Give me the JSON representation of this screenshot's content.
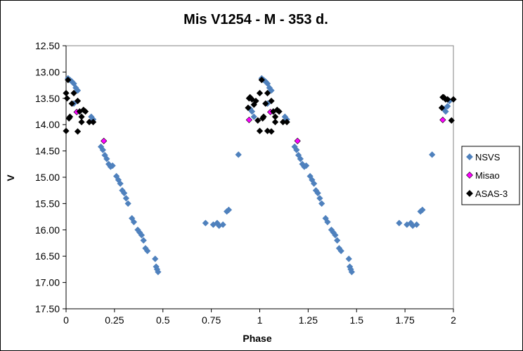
{
  "chart_data": {
    "type": "scatter",
    "title": "Mis V1254 - M - 353 d.",
    "xlabel": "Phase",
    "ylabel": "V",
    "xlim": [
      0,
      2
    ],
    "ylim": [
      12.5,
      17.5
    ],
    "y_inverted": true,
    "x_ticks": [
      "0",
      "0.25",
      "0.5",
      "0.75",
      "1",
      "1.25",
      "1.5",
      "1.75",
      "2"
    ],
    "y_ticks": [
      "12.50",
      "13.00",
      "13.50",
      "14.00",
      "14.50",
      "15.00",
      "15.50",
      "16.00",
      "16.50",
      "17.00",
      "17.50"
    ],
    "grid": false,
    "legend_position": "right",
    "series": [
      {
        "name": "NSVS",
        "color": "#4F81BD",
        "marker": "diamond",
        "points": [
          [
            0.01,
            13.12
          ],
          [
            0.02,
            13.15
          ],
          [
            0.03,
            13.18
          ],
          [
            0.04,
            13.22
          ],
          [
            0.05,
            13.3
          ],
          [
            0.06,
            13.35
          ],
          [
            0.04,
            13.6
          ],
          [
            0.07,
            13.75
          ],
          [
            0.13,
            13.85
          ],
          [
            0.14,
            13.9
          ],
          [
            0.18,
            14.42
          ],
          [
            0.19,
            14.48
          ],
          [
            0.2,
            14.58
          ],
          [
            0.21,
            14.65
          ],
          [
            0.22,
            14.75
          ],
          [
            0.23,
            14.8
          ],
          [
            0.24,
            14.78
          ],
          [
            0.26,
            14.98
          ],
          [
            0.27,
            15.05
          ],
          [
            0.28,
            15.12
          ],
          [
            0.29,
            15.25
          ],
          [
            0.3,
            15.3
          ],
          [
            0.31,
            15.4
          ],
          [
            0.32,
            15.5
          ],
          [
            0.34,
            15.78
          ],
          [
            0.35,
            15.85
          ],
          [
            0.37,
            16.0
          ],
          [
            0.38,
            16.05
          ],
          [
            0.39,
            16.1
          ],
          [
            0.4,
            16.2
          ],
          [
            0.41,
            16.35
          ],
          [
            0.42,
            16.4
          ],
          [
            0.46,
            16.55
          ],
          [
            0.465,
            16.7
          ],
          [
            0.47,
            16.75
          ],
          [
            0.475,
            16.8
          ],
          [
            0.72,
            15.87
          ],
          [
            0.76,
            15.9
          ],
          [
            0.78,
            15.87
          ],
          [
            0.79,
            15.92
          ],
          [
            0.81,
            15.9
          ],
          [
            0.83,
            15.65
          ],
          [
            0.84,
            15.62
          ],
          [
            0.89,
            14.57
          ],
          [
            0.95,
            13.7
          ],
          [
            0.96,
            13.75
          ],
          [
            0.97,
            13.85
          ],
          [
            1.01,
            13.12
          ],
          [
            1.02,
            13.15
          ],
          [
            1.03,
            13.18
          ],
          [
            1.04,
            13.22
          ],
          [
            1.05,
            13.3
          ],
          [
            1.06,
            13.35
          ],
          [
            1.04,
            13.6
          ],
          [
            1.07,
            13.75
          ],
          [
            1.13,
            13.85
          ],
          [
            1.14,
            13.9
          ],
          [
            1.18,
            14.42
          ],
          [
            1.19,
            14.48
          ],
          [
            1.2,
            14.58
          ],
          [
            1.21,
            14.65
          ],
          [
            1.22,
            14.75
          ],
          [
            1.23,
            14.8
          ],
          [
            1.24,
            14.78
          ],
          [
            1.26,
            14.98
          ],
          [
            1.27,
            15.05
          ],
          [
            1.28,
            15.12
          ],
          [
            1.29,
            15.25
          ],
          [
            1.3,
            15.3
          ],
          [
            1.31,
            15.4
          ],
          [
            1.32,
            15.5
          ],
          [
            1.34,
            15.78
          ],
          [
            1.35,
            15.85
          ],
          [
            1.37,
            16.0
          ],
          [
            1.38,
            16.05
          ],
          [
            1.39,
            16.1
          ],
          [
            1.4,
            16.2
          ],
          [
            1.41,
            16.35
          ],
          [
            1.42,
            16.4
          ],
          [
            1.46,
            16.55
          ],
          [
            1.465,
            16.7
          ],
          [
            1.47,
            16.75
          ],
          [
            1.475,
            16.8
          ],
          [
            1.72,
            15.87
          ],
          [
            1.76,
            15.9
          ],
          [
            1.78,
            15.87
          ],
          [
            1.79,
            15.92
          ],
          [
            1.81,
            15.9
          ],
          [
            1.83,
            15.65
          ],
          [
            1.84,
            15.62
          ],
          [
            1.89,
            14.57
          ],
          [
            1.95,
            13.7
          ],
          [
            1.96,
            13.75
          ],
          [
            1.97,
            13.65
          ],
          [
            1.98,
            13.55
          ]
        ]
      },
      {
        "name": "Misao",
        "color": "#FF00FF",
        "marker": "diamond",
        "points": [
          [
            0.055,
            13.76
          ],
          [
            0.195,
            14.31
          ],
          [
            0.945,
            13.91
          ],
          [
            1.055,
            13.76
          ],
          [
            1.195,
            14.31
          ],
          [
            1.945,
            13.91
          ]
        ]
      },
      {
        "name": "ASAS-3",
        "color": "#000000",
        "marker": "diamond",
        "points": [
          [
            0.0,
            13.4
          ],
          [
            0.005,
            13.5
          ],
          [
            0.01,
            13.15
          ],
          [
            0.015,
            13.88
          ],
          [
            0.02,
            13.85
          ],
          [
            0.0,
            14.12
          ],
          [
            0.03,
            13.6
          ],
          [
            0.04,
            13.4
          ],
          [
            0.06,
            13.55
          ],
          [
            0.07,
            13.75
          ],
          [
            0.08,
            13.85
          ],
          [
            0.08,
            13.95
          ],
          [
            0.09,
            13.72
          ],
          [
            0.1,
            13.75
          ],
          [
            0.12,
            13.95
          ],
          [
            0.14,
            13.95
          ],
          [
            0.06,
            14.13
          ],
          [
            0.94,
            13.68
          ],
          [
            0.945,
            13.5
          ],
          [
            0.95,
            13.48
          ],
          [
            0.96,
            13.52
          ],
          [
            0.97,
            13.62
          ],
          [
            0.98,
            13.55
          ],
          [
            0.99,
            13.92
          ],
          [
            1.0,
            13.4
          ],
          [
            1.01,
            13.15
          ],
          [
            1.015,
            13.88
          ],
          [
            1.02,
            13.85
          ],
          [
            1.0,
            14.12
          ],
          [
            1.03,
            13.6
          ],
          [
            1.04,
            13.4
          ],
          [
            1.06,
            13.55
          ],
          [
            1.07,
            13.75
          ],
          [
            1.08,
            13.85
          ],
          [
            1.08,
            13.95
          ],
          [
            1.09,
            13.72
          ],
          [
            1.1,
            13.75
          ],
          [
            1.12,
            13.95
          ],
          [
            1.14,
            13.95
          ],
          [
            1.06,
            14.13
          ],
          [
            1.04,
            14.12
          ],
          [
            1.94,
            13.68
          ],
          [
            1.945,
            13.48
          ],
          [
            1.95,
            13.48
          ],
          [
            1.96,
            13.52
          ],
          [
            1.97,
            13.52
          ],
          [
            1.99,
            13.92
          ],
          [
            2.0,
            13.52
          ]
        ]
      }
    ]
  }
}
